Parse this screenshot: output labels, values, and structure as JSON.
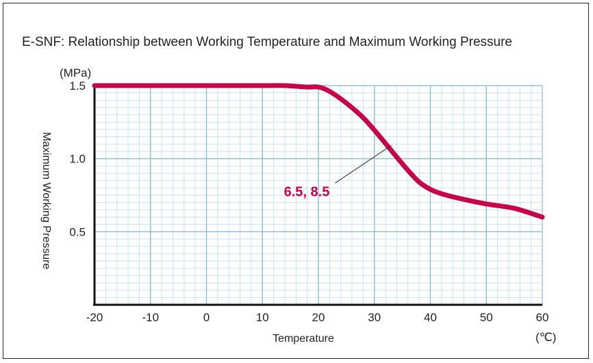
{
  "chart_data": {
    "type": "line",
    "title": "E-SNF: Relationship between Working Temperature and Maximum Working Pressure",
    "xlabel": "Temperature",
    "ylabel": "Maximum Working Pressure",
    "x_unit": "(℃)",
    "y_unit": "(MPa)",
    "xlim": [
      -20,
      60
    ],
    "ylim": [
      0,
      1.5
    ],
    "x_ticks": [
      "-20",
      "-10",
      "0",
      "10",
      "20",
      "30",
      "40",
      "50",
      "60"
    ],
    "y_ticks": [
      "0.5",
      "1.0",
      "1.5"
    ],
    "grid": true,
    "series": [
      {
        "name": "6.5, 8.5",
        "color": "#c8004a",
        "x": [
          -20,
          -10,
          0,
          10,
          14,
          18,
          20,
          22,
          25,
          28,
          31,
          34,
          36,
          38,
          40,
          42,
          45,
          50,
          55,
          60
        ],
        "y": [
          1.5,
          1.5,
          1.5,
          1.5,
          1.5,
          1.49,
          1.49,
          1.46,
          1.38,
          1.28,
          1.15,
          1.01,
          0.92,
          0.84,
          0.79,
          0.76,
          0.73,
          0.69,
          0.66,
          0.6
        ]
      }
    ],
    "annotation": {
      "text": "6.5, 8.5",
      "target": [
        33,
        1.09
      ],
      "label_at": [
        22,
        0.8
      ]
    }
  }
}
